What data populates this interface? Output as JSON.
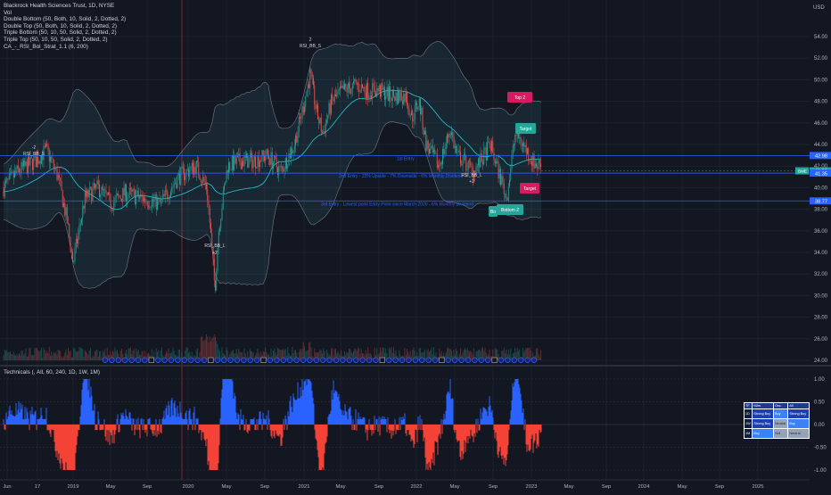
{
  "header": {
    "symbol_title": "Blackrock Health Sciences Trust, 1D, NYSE",
    "studies": [
      "Vol",
      "Double Bottom (50, Both, 10, Solid, 2, Dotted, 2)",
      "Double Top (50, Both, 10, Solid, 2, Dotted, 2)",
      "Triple Bottom (50, 10, 50, Solid, 2, Dotted, 2)",
      "Triple Top (50, 10, 50, Solid, 2, Dotted, 2)",
      "CA_-_RSI_Bol_Strat_1.1 (6, 200)"
    ]
  },
  "price_axis": {
    "currency": "USD",
    "ticks": [
      "54.00",
      "52.00",
      "50.00",
      "48.00",
      "46.00",
      "44.00",
      "42.00",
      "40.00",
      "38.00",
      "36.00",
      "34.00",
      "32.00",
      "30.00",
      "28.00",
      "26.00",
      "24.00"
    ],
    "badges": [
      {
        "label": "BME",
        "value": "41.56",
        "color": "#26a69a"
      },
      {
        "label": "",
        "value": "42.98",
        "color": "#2962ff"
      },
      {
        "label": "",
        "value": "41.35",
        "color": "#2962ff"
      },
      {
        "label": "",
        "value": "38.77",
        "color": "#2962ff"
      }
    ]
  },
  "time_axis": {
    "ticks": [
      "Jun",
      "17",
      "2019",
      "May",
      "Sep",
      "2020",
      "May",
      "Sep",
      "2021",
      "May",
      "Sep",
      "2022",
      "May",
      "Sep",
      "2023",
      "May",
      "Sep",
      "2024",
      "May",
      "Sep",
      "2025"
    ]
  },
  "indicator": {
    "title": "Technicals (, All, 60, 240, 1D, 1W, 1M)",
    "axis_ticks": [
      "1.00",
      "0.50",
      "0.00",
      "-0.50",
      "-1.00"
    ]
  },
  "lines": {
    "first_entry": "1st Entry",
    "second_entry": "2nd Entry - 22% Upside - 7% Downside - 6% Monthly Dividend",
    "third_entry": "3rd Entry - Lowest point Entry Point since March 2020 - 6% Monthly Dividend"
  },
  "labels": {
    "top2": "Top 2",
    "target_top": "Target",
    "target_bottom": "Target",
    "bottom2": "Bottom 2",
    "bottom2_prefix": "Bo",
    "rsi_top_num": "2",
    "rsi_top_text": "RSI_BB_S",
    "rsi_left_num": "-2",
    "rsi_left_text": "RSI_BB_S",
    "rsi_2020_text": "RSI_BB_L",
    "rsi_2020_num": "+2",
    "rsi_2022_text": "RSI_BB_L",
    "rsi_2022_num": "+2"
  },
  "technicals_table": {
    "headers": [
      "TF",
      "MAs",
      "Osc.",
      "All"
    ],
    "rows": [
      {
        "tf": "1D",
        "mas": "Strong Buy",
        "osc": "Buy",
        "all": "Strong Buy"
      },
      {
        "tf": "1W",
        "mas": "Strong Buy",
        "osc": "Neutral",
        "all": "Buy"
      },
      {
        "tf": "1M",
        "mas": "Buy",
        "osc": "Sell",
        "all": "Neutral"
      }
    ]
  },
  "colors": {
    "background": "#131722",
    "up": "#26a69a",
    "down": "#ef5350",
    "band": "#4dd0e1",
    "basis": "#26c6da",
    "entry_line": "#2962ff",
    "tech_pos": "#2962ff",
    "tech_neg": "#f44336"
  }
}
